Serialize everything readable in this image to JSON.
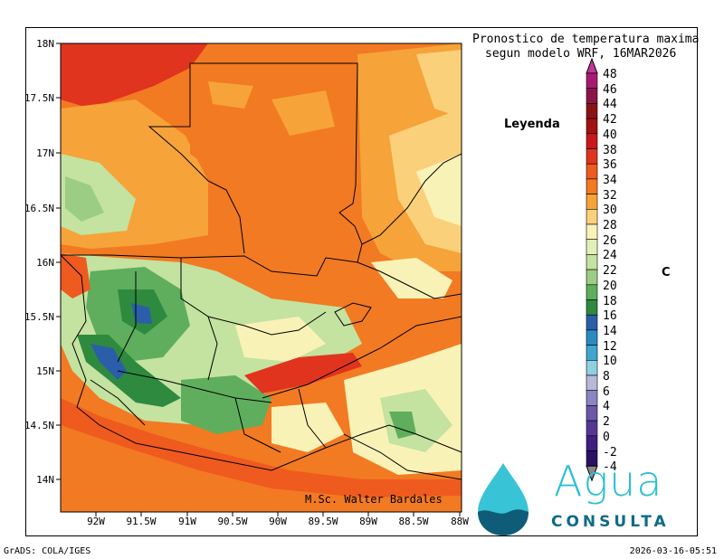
{
  "title": {
    "line1": "Pronostico de temperatura maxima",
    "line2": "segun modelo WRF, 16MAR2026"
  },
  "legend": {
    "title": "Leyenda",
    "unit": "C",
    "levels": [
      48,
      46,
      44,
      42,
      40,
      38,
      36,
      34,
      32,
      30,
      28,
      26,
      24,
      22,
      20,
      18,
      16,
      14,
      12,
      10,
      8,
      6,
      4,
      2,
      0,
      -2,
      -4
    ],
    "colors": [
      "#a81b73",
      "#8b1646",
      "#8a1414",
      "#a21212",
      "#c91818",
      "#e0341e",
      "#ef5a1e",
      "#f27a22",
      "#f6a339",
      "#fbd07a",
      "#f9f2b6",
      "#e3efb9",
      "#c4e2a0",
      "#9ccd84",
      "#5fae5d",
      "#2e8a3f",
      "#2b5ea9",
      "#2c8ac3",
      "#3ea7cf",
      "#8fd0e2",
      "#b8b8d9",
      "#8d84c2",
      "#6c58a8",
      "#553896",
      "#3f1f80",
      "#2a1166",
      "#8a8a8a"
    ],
    "top_arrow_color": "#c4349a"
  },
  "map": {
    "lat_labels": [
      "18N",
      "17.5N",
      "17N",
      "16.5N",
      "16N",
      "15.5N",
      "15N",
      "14.5N",
      "14N"
    ],
    "lon_labels": [
      "92W",
      "91.5W",
      "91W",
      "90.5W",
      "90W",
      "89.5W",
      "89W",
      "88.5W",
      "88W"
    ],
    "author": "M.Sc. Walter Bardales"
  },
  "footer": {
    "left": "GrADS: COLA/IGES",
    "right": "2026-03-16-05:51"
  },
  "logo": {
    "word1": "Agua",
    "word2": "CONSULTA",
    "drop_color": "#39c3d6",
    "wave_color": "#0e5c78"
  }
}
